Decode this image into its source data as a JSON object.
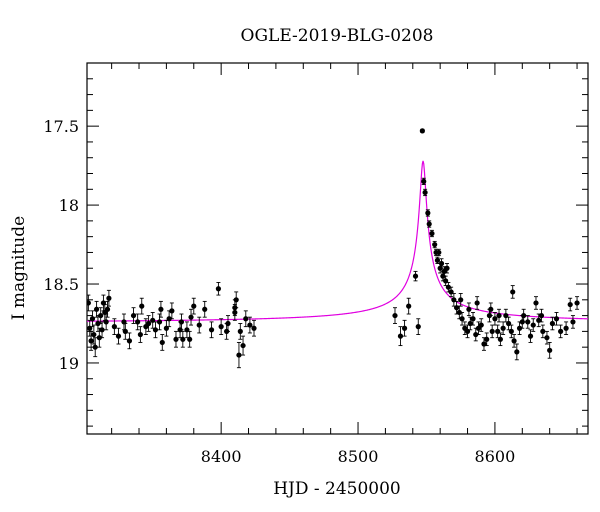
{
  "chart_data": {
    "type": "scatter",
    "title": "OGLE-2019-BLG-0208",
    "xlabel": "HJD - 2450000",
    "ylabel": "I magnitude",
    "xlim": [
      8302,
      8668
    ],
    "ylim": [
      19.45,
      17.1
    ],
    "y_inverted": true,
    "x_ticks": [
      8400,
      8500,
      8600
    ],
    "y_ticks": [
      17.5,
      18,
      18.5,
      19
    ],
    "x_minor_step": 20,
    "y_minor_step": 0.1,
    "grid": false,
    "legend": "none",
    "colors": {
      "points": "#000000",
      "model": "#e000e0"
    },
    "model": {
      "type": "microlensing-fit",
      "baseline": 18.75,
      "t0": 8547.5,
      "peak": 17.72,
      "tE": 2.1
    },
    "series": [
      {
        "style": "points-with-errorbars",
        "points": [
          [
            8303,
            18.62,
            0.05
          ],
          [
            8304,
            18.78,
            0.05
          ],
          [
            8305,
            18.86,
            0.06
          ],
          [
            8306,
            18.72,
            0.05
          ],
          [
            8307,
            18.82,
            0.06
          ],
          [
            8308,
            18.9,
            0.06
          ],
          [
            8309,
            18.66,
            0.05
          ],
          [
            8310,
            18.75,
            0.05
          ],
          [
            8311,
            18.84,
            0.06
          ],
          [
            8312,
            18.7,
            0.05
          ],
          [
            8313,
            18.79,
            0.05
          ],
          [
            8314,
            18.62,
            0.05
          ],
          [
            8315,
            18.68,
            0.05
          ],
          [
            8316,
            18.74,
            0.05
          ],
          [
            8317,
            18.66,
            0.05
          ],
          [
            8318,
            18.59,
            0.05
          ],
          [
            8322,
            18.77,
            0.05
          ],
          [
            8325,
            18.83,
            0.05
          ],
          [
            8329,
            18.74,
            0.05
          ],
          [
            8333,
            18.86,
            0.05
          ],
          [
            8336,
            18.7,
            0.05
          ],
          [
            8339,
            18.74,
            0.05
          ],
          [
            8341,
            18.82,
            0.05
          ],
          [
            8345,
            18.77,
            0.05
          ],
          [
            8347,
            18.75,
            0.05
          ],
          [
            8350,
            18.73,
            0.05
          ],
          [
            8352,
            18.79,
            0.05
          ],
          [
            8355,
            18.74,
            0.05
          ],
          [
            8357,
            18.87,
            0.05
          ],
          [
            8360,
            18.78,
            0.05
          ],
          [
            8364,
            18.67,
            0.05
          ],
          [
            8367,
            18.85,
            0.05
          ],
          [
            8370,
            18.79,
            0.05
          ],
          [
            8372,
            18.85,
            0.05
          ],
          [
            8375,
            18.79,
            0.05
          ],
          [
            8377,
            18.85,
            0.05
          ],
          [
            8380,
            18.64,
            0.05
          ],
          [
            8384,
            18.76,
            0.05
          ],
          [
            8388,
            18.66,
            0.05
          ],
          [
            8393,
            18.79,
            0.05
          ],
          [
            8400,
            18.77,
            0.05
          ],
          [
            8405,
            18.75,
            0.05
          ],
          [
            8410,
            18.68,
            0.05
          ],
          [
            8414,
            18.8,
            0.05
          ],
          [
            8418,
            18.72,
            0.05
          ],
          [
            8421,
            18.76,
            0.05
          ],
          [
            8424,
            18.78,
            0.05
          ],
          [
            8330,
            18.8,
            0.05
          ],
          [
            8342,
            18.64,
            0.05
          ],
          [
            8356,
            18.66,
            0.05
          ],
          [
            8362,
            18.72,
            0.05
          ],
          [
            8371,
            18.74,
            0.05
          ],
          [
            8378,
            18.71,
            0.05
          ],
          [
            8398,
            18.53,
            0.04
          ],
          [
            8404,
            18.8,
            0.05
          ],
          [
            8410,
            18.65,
            0.05
          ],
          [
            8411,
            18.6,
            0.05
          ],
          [
            8413,
            18.95,
            0.08
          ],
          [
            8416,
            18.89,
            0.06
          ],
          [
            8527,
            18.7,
            0.05
          ],
          [
            8531,
            18.83,
            0.06
          ],
          [
            8534,
            18.78,
            0.05
          ],
          [
            8537,
            18.64,
            0.05
          ],
          [
            8542,
            18.45,
            0.03
          ],
          [
            8544,
            18.77,
            0.05
          ],
          [
            8547,
            17.53,
            0.01
          ],
          [
            8548,
            17.85,
            0.02
          ],
          [
            8549,
            17.92,
            0.02
          ],
          [
            8551,
            18.05,
            0.02
          ],
          [
            8552,
            18.12,
            0.02
          ],
          [
            8554,
            18.18,
            0.02
          ],
          [
            8556,
            18.25,
            0.02
          ],
          [
            8557,
            18.3,
            0.02
          ],
          [
            8558,
            18.35,
            0.02
          ],
          [
            8559,
            18.3,
            0.02
          ],
          [
            8560,
            18.4,
            0.03
          ],
          [
            8561,
            18.37,
            0.03
          ],
          [
            8562,
            18.45,
            0.03
          ],
          [
            8563,
            18.42,
            0.03
          ],
          [
            8564,
            18.48,
            0.03
          ],
          [
            8565,
            18.4,
            0.03
          ],
          [
            8566,
            18.52,
            0.03
          ],
          [
            8568,
            18.55,
            0.03
          ],
          [
            8570,
            18.6,
            0.04
          ],
          [
            8572,
            18.65,
            0.04
          ],
          [
            8574,
            18.68,
            0.04
          ],
          [
            8576,
            18.72,
            0.04
          ],
          [
            8578,
            18.78,
            0.04
          ],
          [
            8580,
            18.8,
            0.04
          ],
          [
            8582,
            18.75,
            0.04
          ],
          [
            8584,
            18.72,
            0.04
          ],
          [
            8586,
            18.82,
            0.04
          ],
          [
            8588,
            18.78,
            0.04
          ],
          [
            8590,
            18.76,
            0.04
          ],
          [
            8592,
            18.88,
            0.04
          ],
          [
            8594,
            18.85,
            0.04
          ],
          [
            8596,
            18.7,
            0.04
          ],
          [
            8598,
            18.8,
            0.04
          ],
          [
            8600,
            18.72,
            0.04
          ],
          [
            8602,
            18.8,
            0.04
          ],
          [
            8604,
            18.85,
            0.04
          ],
          [
            8606,
            18.78,
            0.04
          ],
          [
            8608,
            18.7,
            0.04
          ],
          [
            8610,
            18.75,
            0.04
          ],
          [
            8612,
            18.8,
            0.04
          ],
          [
            8614,
            18.86,
            0.04
          ],
          [
            8616,
            18.93,
            0.05
          ],
          [
            8618,
            18.78,
            0.04
          ],
          [
            8620,
            18.74,
            0.04
          ],
          [
            8624,
            18.74,
            0.04
          ],
          [
            8628,
            18.76,
            0.04
          ],
          [
            8632,
            18.73,
            0.04
          ],
          [
            8635,
            18.8,
            0.04
          ],
          [
            8638,
            18.84,
            0.04
          ],
          [
            8640,
            18.92,
            0.05
          ],
          [
            8642,
            18.75,
            0.04
          ],
          [
            8645,
            18.72,
            0.04
          ],
          [
            8648,
            18.8,
            0.04
          ],
          [
            8652,
            18.78,
            0.04
          ],
          [
            8655,
            18.63,
            0.04
          ],
          [
            8657,
            18.74,
            0.04
          ],
          [
            8660,
            18.62,
            0.04
          ],
          [
            8575,
            18.6,
            0.04
          ],
          [
            8581,
            18.66,
            0.04
          ],
          [
            8587,
            18.62,
            0.04
          ],
          [
            8597,
            18.66,
            0.04
          ],
          [
            8603,
            18.7,
            0.04
          ],
          [
            8613,
            18.55,
            0.04
          ],
          [
            8621,
            18.7,
            0.04
          ],
          [
            8626,
            18.83,
            0.04
          ],
          [
            8630,
            18.62,
            0.04
          ],
          [
            8634,
            18.7,
            0.04
          ]
        ]
      }
    ]
  }
}
